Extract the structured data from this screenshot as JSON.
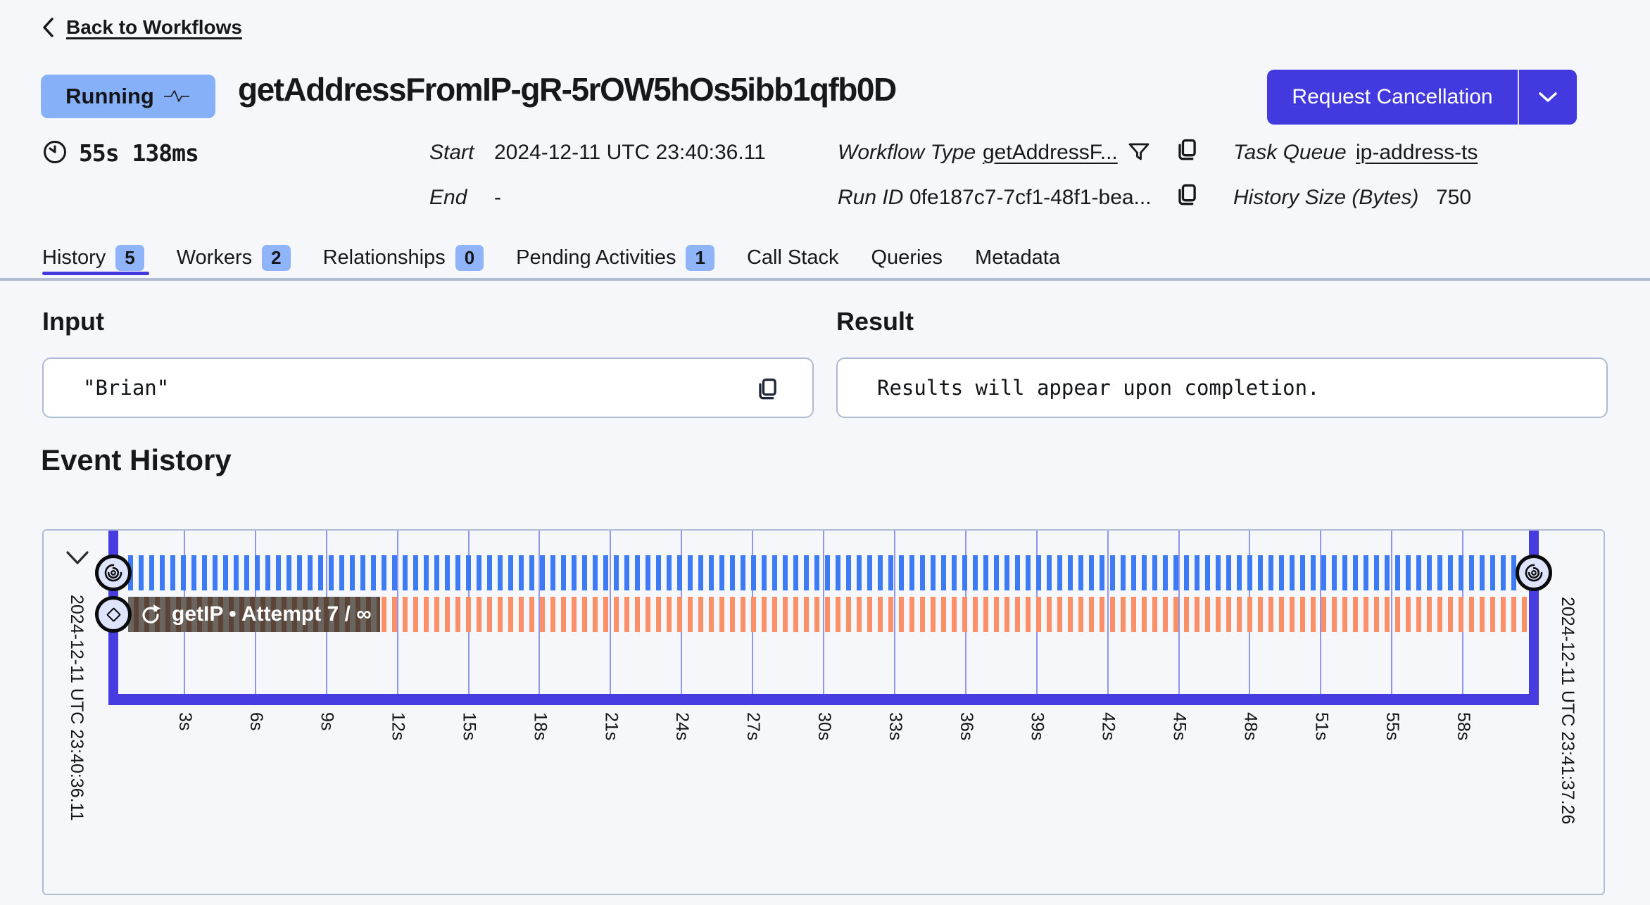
{
  "page": {
    "back_label": "Back to Workflows"
  },
  "header": {
    "status": "Running",
    "title": "getAddressFromIP-gR-5rOW5hOs5ibb1qfb0D",
    "cancel_button_label": "Request Cancellation",
    "duration": "55s 138ms",
    "meta": {
      "start_label": "Start",
      "start_value": "2024-12-11 UTC 23:40:36.11",
      "end_label": "End",
      "end_value": "-",
      "workflow_type_label": "Workflow Type",
      "workflow_type_value": "getAddressF...",
      "run_id_label": "Run ID",
      "run_id_value": "0fe187c7-7cf1-48f1-bea...",
      "task_queue_label": "Task Queue",
      "task_queue_value": "ip-address-ts",
      "history_size_label": "History Size (Bytes)",
      "history_size_value": "750"
    }
  },
  "tabs": [
    {
      "label": "History",
      "badge": "5",
      "active": true
    },
    {
      "label": "Workers",
      "badge": "2",
      "active": false
    },
    {
      "label": "Relationships",
      "badge": "0",
      "active": false
    },
    {
      "label": "Pending Activities",
      "badge": "1",
      "active": false
    },
    {
      "label": "Call Stack",
      "active": false
    },
    {
      "label": "Queries",
      "active": false
    },
    {
      "label": "Metadata",
      "active": false
    }
  ],
  "input_section": {
    "title": "Input",
    "value": "\"Brian\""
  },
  "result_section": {
    "title": "Result",
    "value": "Results will appear upon completion."
  },
  "event_history": {
    "title": "Event History",
    "start_time": "2024-12-11 UTC 23:40:36.11",
    "end_time": "2024-12-11 UTC 23:41:37.26",
    "activity_label": "getIP • Attempt 7 / ∞",
    "ticks": [
      "3s",
      "6s",
      "9s",
      "12s",
      "15s",
      "18s",
      "21s",
      "24s",
      "27s",
      "30s",
      "33s",
      "36s",
      "39s",
      "42s",
      "45s",
      "48s",
      "51s",
      "55s",
      "58s"
    ]
  },
  "colors": {
    "accent_indigo": "#4239df",
    "running_badge_blue": "#86b1f8",
    "tab_badge_blue": "#8fb4f9",
    "workflow_stripe_blue": "#3d7af6",
    "activity_stripe_orange": "#fa8f68",
    "timeline_bracket_indigo": "#463cdf",
    "gridline_purple": "#9096ec",
    "box_border_gray": "#aebbd6",
    "page_background": "#f6f7fa"
  }
}
